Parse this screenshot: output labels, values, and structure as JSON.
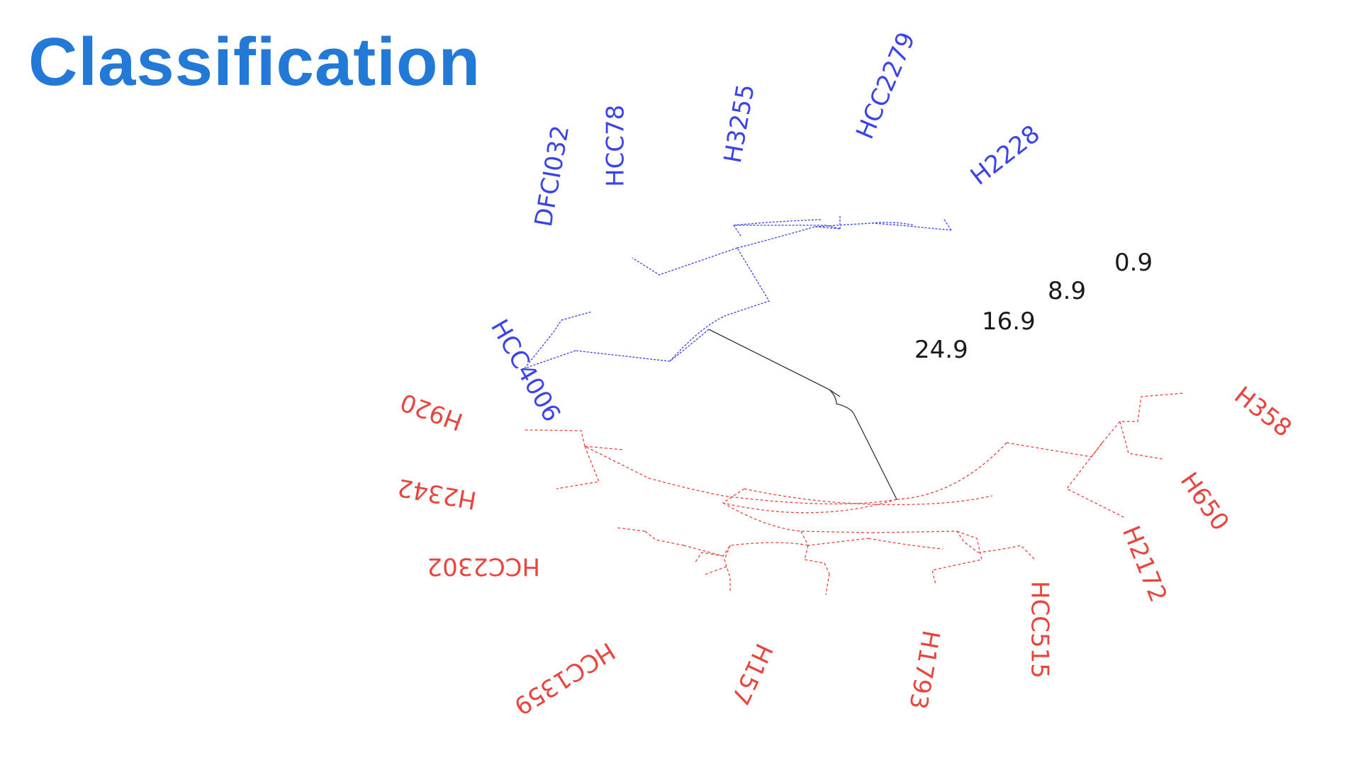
{
  "title": "Classification",
  "colors": {
    "title": "#2379d6",
    "group_blue": "#3a44e8",
    "group_red": "#e8453e",
    "scale": "#1a1a1a",
    "root": "#333333"
  },
  "scale_labels": [
    "24.9",
    "16.9",
    "8.9",
    "0.9"
  ],
  "leaves": [
    {
      "label": "HCC4006",
      "group": "blue"
    },
    {
      "label": "DFCI032",
      "group": "blue"
    },
    {
      "label": "HCC78",
      "group": "blue"
    },
    {
      "label": "H3255",
      "group": "blue"
    },
    {
      "label": "HCC2279",
      "group": "blue"
    },
    {
      "label": "H2228",
      "group": "blue"
    },
    {
      "label": "H920",
      "group": "red"
    },
    {
      "label": "H2342",
      "group": "red"
    },
    {
      "label": "HCC2302",
      "group": "red"
    },
    {
      "label": "HCC1359",
      "group": "red"
    },
    {
      "label": "H157",
      "group": "red"
    },
    {
      "label": "H1793",
      "group": "red"
    },
    {
      "label": "HCC515",
      "group": "red"
    },
    {
      "label": "H2172",
      "group": "red"
    },
    {
      "label": "H650",
      "group": "red"
    },
    {
      "label": "H358",
      "group": "red"
    }
  ]
}
